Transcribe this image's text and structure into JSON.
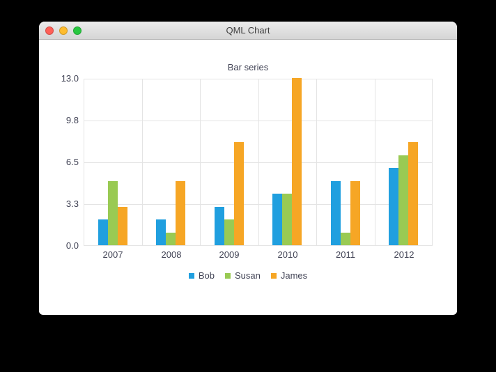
{
  "window": {
    "title": "QML Chart",
    "controls": {
      "close_color": "#ff5f57",
      "minimize_color": "#febc2e",
      "zoom_color": "#28c840"
    }
  },
  "chart_data": {
    "type": "bar",
    "title": "Bar series",
    "categories": [
      "2007",
      "2008",
      "2009",
      "2010",
      "2011",
      "2012"
    ],
    "series": [
      {
        "name": "Bob",
        "color": "#209fdf",
        "values": [
          2,
          2,
          3,
          4,
          5,
          6
        ]
      },
      {
        "name": "Susan",
        "color": "#99ca53",
        "values": [
          5,
          1,
          2,
          4,
          1,
          7
        ]
      },
      {
        "name": "James",
        "color": "#f6a625",
        "values": [
          3,
          5,
          8,
          13,
          5,
          8
        ]
      }
    ],
    "ylim": [
      0,
      13
    ],
    "ytick_labels": [
      "13.0",
      "9.8",
      "6.5",
      "3.3",
      "0.0"
    ],
    "grid": true,
    "legend_position": "bottom",
    "axis_text_color": "#404254",
    "grid_color": "#e4e4e4"
  }
}
